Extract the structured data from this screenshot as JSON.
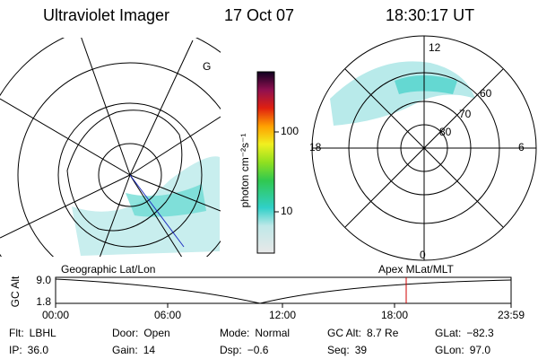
{
  "header": {
    "title": "Ultraviolet Imager",
    "date": "17 Oct 07",
    "time": "18:30:17 UT"
  },
  "map": {
    "marker": "G"
  },
  "colorbar": {
    "label": "photon cm⁻²s⁻¹",
    "ticks": [
      "100",
      "10"
    ]
  },
  "polar": {
    "labels": [
      "12",
      "60",
      "70",
      "80",
      "18",
      "6",
      "0"
    ]
  },
  "timeline": {
    "left_title": "Geographic Lat/Lon",
    "right_title": "Apex MLat/MLT",
    "axis_label": "GC Alt",
    "y_labels": [
      "9.0",
      "1.8"
    ],
    "x_labels": [
      "00:00",
      "06:00",
      "12:00",
      "18:00",
      "23:59"
    ]
  },
  "info": [
    [
      {
        "label": "Flt:",
        "value": "LBHL"
      },
      {
        "label": "Door:",
        "value": "Open"
      },
      {
        "label": "Mode:",
        "value": "Normal"
      },
      {
        "label": "GC Alt:",
        "value": "8.7 Re"
      },
      {
        "label": "GLat:",
        "value": "−82.3"
      }
    ],
    [
      {
        "label": "IP:",
        "value": "36.0"
      },
      {
        "label": "Gain:",
        "value": "14"
      },
      {
        "label": "Dsp:",
        "value": "−0.6"
      },
      {
        "label": "Seq:",
        "value": "39"
      },
      {
        "label": "GLon:",
        "value": "97.0"
      }
    ]
  ]
}
